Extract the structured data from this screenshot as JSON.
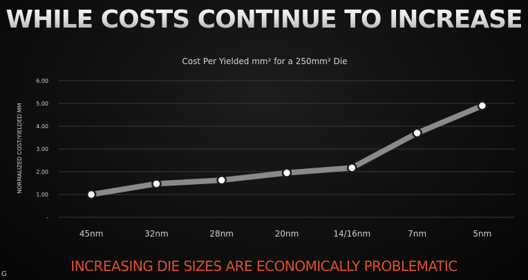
{
  "headline": "WHILE COSTS CONTINUE TO INCREASE",
  "subtitle": "INCREASING DIE SIZES ARE ECONOMICALLY PROBLEMATIC",
  "corner_glyph": "G",
  "colors": {
    "headline": "#e9e9e9",
    "subtitle": "#e0502a",
    "line": "#8a8a8a",
    "marker_fill": "#ffffff",
    "marker_stroke": "#1a1a1a",
    "grid": "#3a3a3a",
    "text": "#d0d0d0"
  },
  "chart_data": {
    "type": "line",
    "title": "Cost Per Yielded mm² for a 250mm² Die",
    "xlabel": "",
    "ylabel": "NORMALIZED COST/YIELDED MM",
    "categories": [
      "45nm",
      "32nm",
      "28nm",
      "20nm",
      "14/16nm",
      "7nm",
      "5nm"
    ],
    "series": [
      {
        "values": [
          1.0,
          1.47,
          1.63,
          1.95,
          2.17,
          3.7,
          4.9
        ]
      }
    ],
    "ylim": [
      0,
      6
    ],
    "yticks": [
      {
        "value": 0,
        "label": "-"
      },
      {
        "value": 1,
        "label": "1.00"
      },
      {
        "value": 2,
        "label": "2.00"
      },
      {
        "value": 3,
        "label": "3.00"
      },
      {
        "value": 4,
        "label": "4.00"
      },
      {
        "value": 5,
        "label": "5.00"
      },
      {
        "value": 6,
        "label": "6.00"
      }
    ],
    "grid": true,
    "legend": "none"
  }
}
